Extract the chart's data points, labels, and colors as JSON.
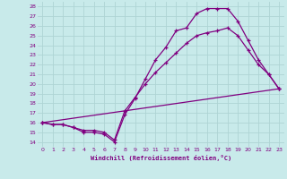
{
  "xlabel": "Windchill (Refroidissement éolien,°C)",
  "xlim": [
    -0.5,
    23.5
  ],
  "ylim": [
    13.5,
    28.5
  ],
  "xticks": [
    0,
    1,
    2,
    3,
    4,
    5,
    6,
    7,
    8,
    9,
    10,
    11,
    12,
    13,
    14,
    15,
    16,
    17,
    18,
    19,
    20,
    21,
    22,
    23
  ],
  "yticks": [
    14,
    15,
    16,
    17,
    18,
    19,
    20,
    21,
    22,
    23,
    24,
    25,
    26,
    27,
    28
  ],
  "bg_color": "#c8eaea",
  "grid_color": "#aed4d4",
  "line_color": "#800080",
  "curve1_x": [
    0,
    1,
    2,
    3,
    4,
    5,
    6,
    7,
    8,
    9,
    10,
    11,
    12,
    13,
    14,
    15,
    16,
    17,
    18,
    19,
    20,
    21,
    22,
    23
  ],
  "curve1_y": [
    16,
    15.8,
    15.8,
    15.5,
    15.2,
    15.2,
    15.0,
    14.2,
    17.2,
    18.6,
    20.0,
    21.2,
    22.2,
    23.2,
    24.2,
    25.0,
    25.3,
    25.5,
    25.8,
    25.0,
    23.5,
    22.0,
    21.0,
    19.5
  ],
  "curve2_x": [
    0,
    1,
    2,
    3,
    4,
    5,
    6,
    7,
    8,
    9,
    10,
    11,
    12,
    13,
    14,
    15,
    16,
    17,
    18,
    19,
    20,
    21,
    22,
    23
  ],
  "curve2_y": [
    16,
    15.8,
    15.8,
    15.5,
    15.0,
    15.0,
    14.8,
    14.0,
    16.8,
    18.5,
    20.5,
    22.5,
    23.8,
    25.5,
    25.8,
    27.3,
    27.8,
    27.8,
    27.8,
    26.5,
    24.5,
    22.5,
    21.0,
    19.5
  ],
  "curve3_x": [
    0,
    23
  ],
  "curve3_y": [
    16,
    19.5
  ],
  "marker": "+"
}
